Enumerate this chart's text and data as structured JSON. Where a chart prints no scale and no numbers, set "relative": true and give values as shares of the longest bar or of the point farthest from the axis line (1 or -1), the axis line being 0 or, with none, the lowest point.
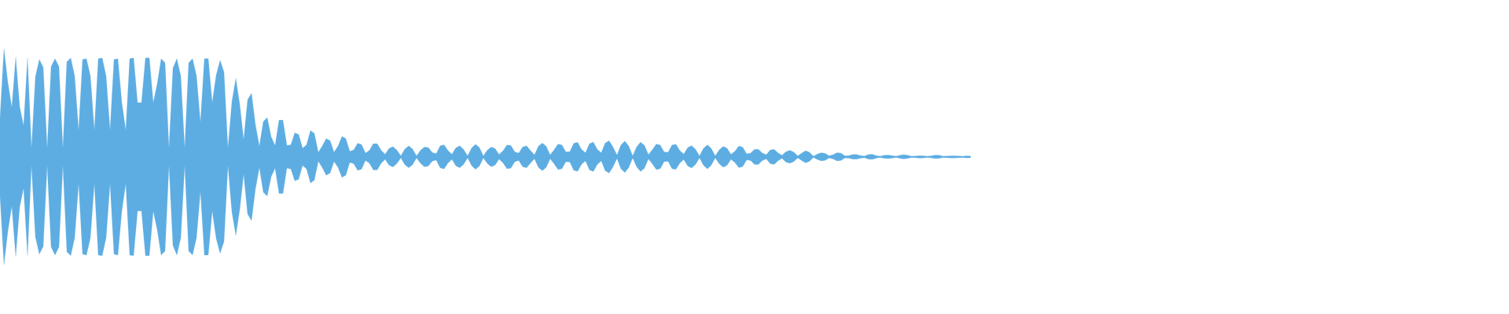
{
  "chart_data": {
    "type": "area",
    "relative": true,
    "categories": [
      null,
      null,
      null,
      null,
      null,
      null,
      null,
      null,
      null,
      null,
      null,
      null,
      null,
      null,
      null,
      null,
      null,
      null,
      null,
      null,
      null,
      null,
      null,
      null,
      null,
      null,
      null,
      null,
      null,
      null,
      null,
      null,
      null,
      null,
      null,
      null,
      null,
      null,
      null,
      null,
      null,
      null,
      null,
      null,
      null,
      null,
      null,
      null,
      null,
      null,
      null,
      null,
      null,
      null,
      null,
      null,
      null,
      null,
      null,
      null,
      null,
      null,
      null,
      null,
      null,
      null,
      null,
      null,
      null,
      null,
      null,
      null,
      null,
      null,
      null,
      null,
      null,
      null,
      null,
      null,
      null,
      null,
      null,
      null,
      null,
      null,
      null,
      null,
      null,
      null,
      null,
      null,
      null,
      null,
      null,
      null,
      null,
      null,
      null,
      null,
      null,
      null,
      null,
      null,
      null,
      null,
      null,
      null,
      null,
      null,
      null,
      null,
      null,
      null,
      null,
      null,
      null,
      null,
      null,
      null,
      null,
      null,
      null,
      null,
      null,
      null,
      null,
      null,
      null,
      null,
      null,
      null,
      null,
      null,
      null,
      null,
      null,
      null,
      null,
      null,
      null,
      null,
      null,
      null,
      null,
      null,
      null,
      null,
      null,
      null,
      null,
      null,
      null,
      null,
      null,
      null,
      null,
      null,
      null,
      null,
      null,
      null,
      null,
      null,
      null,
      null,
      null,
      null,
      null,
      null,
      null,
      null,
      null,
      null,
      null,
      null,
      null,
      null,
      null,
      null,
      null,
      null,
      null,
      null,
      null,
      null,
      null,
      null,
      null,
      null,
      null,
      null,
      null,
      null,
      null,
      null,
      null,
      null,
      null,
      null,
      null,
      null,
      null,
      null,
      null,
      null,
      null,
      null,
      null,
      null,
      null,
      null,
      null,
      null,
      null,
      null,
      null,
      null,
      null,
      null,
      null,
      null,
      null,
      null,
      null,
      null,
      null,
      null,
      null,
      null,
      null,
      null,
      null,
      null,
      null,
      null,
      null,
      null,
      null,
      null,
      null,
      null,
      null,
      null,
      null,
      null,
      null,
      null
    ],
    "ref_lines": [
      {
        "axis": "y",
        "value": 0,
        "color": "#5dade2"
      }
    ],
    "series": [
      {
        "color": "#5dade2",
        "values": [
          0.364,
          1,
          0.69,
          0.458,
          0.924,
          0.466,
          0.29,
          0.916,
          0.08,
          0.742,
          0.902,
          0.83,
          0.08,
          0.836,
          0.91,
          0.836,
          0.08,
          0.88,
          0.916,
          0.75,
          0.248,
          0.902,
          0.91,
          0.75,
          0.248,
          0.91,
          0.916,
          0.75,
          0.248,
          0.902,
          0.91,
          0.502,
          0.248,
          0.91,
          0.916,
          0.502,
          0.502,
          0.916,
          0.916,
          0.502,
          0.676,
          0.91,
          0.872,
          0.08,
          0.822,
          0.91,
          0.75,
          0.08,
          0.872,
          0.91,
          0.75,
          0.32,
          0.91,
          0.91,
          0.502,
          0.756,
          0.894,
          0.786,
          0.08,
          0.51,
          0.728,
          0.49,
          0.16,
          0.53,
          0.59,
          0.298,
          0.1,
          0.328,
          0.364,
          0.186,
          0.106,
          0.34,
          0.34,
          0.106,
          0.112,
          0.222,
          0.208,
          0.08,
          0.112,
          0.244,
          0.216,
          0.042,
          0.1,
          0.17,
          0.15,
          0.044,
          0.098,
          0.19,
          0.17,
          0.052,
          0.064,
          0.126,
          0.114,
          0.034,
          0.06,
          0.122,
          0.122,
          0.06,
          0.024,
          0.078,
          0.094,
          0.062,
          0.01,
          0.072,
          0.102,
          0.072,
          0.01,
          0.06,
          0.092,
          0.086,
          0.04,
          0.03,
          0.102,
          0.112,
          0.058,
          0.024,
          0.084,
          0.102,
          0.068,
          0.01,
          0.082,
          0.116,
          0.086,
          0.01,
          0.062,
          0.092,
          0.076,
          0.022,
          0.056,
          0.11,
          0.106,
          0.046,
          0.034,
          0.092,
          0.102,
          0.058,
          0.018,
          0.098,
          0.128,
          0.098,
          0.018,
          0.066,
          0.118,
          0.11,
          0.046,
          0.048,
          0.126,
          0.134,
          0.068,
          0.038,
          0.122,
          0.136,
          0.07,
          0.038,
          0.128,
          0.15,
          0.092,
          0.016,
          0.11,
          0.146,
          0.1,
          0.01,
          0.092,
          0.136,
          0.106,
          0.02,
          0.066,
          0.118,
          0.11,
          0.046,
          0.042,
          0.11,
          0.116,
          0.058,
          0.026,
          0.086,
          0.104,
          0.07,
          0.01,
          0.078,
          0.112,
          0.078,
          0.01,
          0.064,
          0.096,
          0.08,
          0.024,
          0.052,
          0.1,
          0.09,
          0.028,
          0.034,
          0.07,
          0.07,
          0.034,
          0.02,
          0.064,
          0.07,
          0.036,
          0.014,
          0.048,
          0.06,
          0.044,
          0.01,
          0.034,
          0.056,
          0.042,
          0.006,
          0.026,
          0.038,
          0.032,
          0.01,
          0.02,
          0.038,
          0.034,
          0.01,
          0.012,
          0.022,
          0.022,
          0.012,
          0.008,
          0.022,
          0.024,
          0.012,
          0.006,
          0.014,
          0.016,
          0.012,
          0.006,
          0.014,
          0.02,
          0.014,
          0.006,
          0.008,
          0.012,
          0.01,
          0.006,
          0.01,
          0.016,
          0.014,
          0.006,
          0.008,
          0.01,
          0.01,
          0.008,
          0.006,
          0.01,
          0.008
        ]
      },
      {
        "color": "#5dade2",
        "values": [
          -0.364,
          -1,
          -0.69,
          -0.458,
          -0.924,
          -0.466,
          -0.29,
          -0.916,
          -0.08,
          -0.742,
          -0.902,
          -0.83,
          -0.08,
          -0.836,
          -0.91,
          -0.836,
          -0.08,
          -0.88,
          -0.916,
          -0.75,
          -0.248,
          -0.902,
          -0.91,
          -0.75,
          -0.248,
          -0.91,
          -0.916,
          -0.75,
          -0.248,
          -0.902,
          -0.91,
          -0.502,
          -0.248,
          -0.91,
          -0.916,
          -0.502,
          -0.502,
          -0.916,
          -0.916,
          -0.502,
          -0.676,
          -0.91,
          -0.872,
          -0.08,
          -0.822,
          -0.91,
          -0.75,
          -0.08,
          -0.872,
          -0.91,
          -0.75,
          -0.32,
          -0.91,
          -0.91,
          -0.502,
          -0.756,
          -0.894,
          -0.786,
          -0.08,
          -0.51,
          -0.728,
          -0.49,
          -0.16,
          -0.53,
          -0.59,
          -0.298,
          -0.1,
          -0.328,
          -0.364,
          -0.186,
          -0.106,
          -0.34,
          -0.34,
          -0.106,
          -0.112,
          -0.222,
          -0.208,
          -0.08,
          -0.112,
          -0.244,
          -0.216,
          -0.042,
          -0.1,
          -0.17,
          -0.15,
          -0.044,
          -0.098,
          -0.19,
          -0.17,
          -0.052,
          -0.064,
          -0.126,
          -0.114,
          -0.034,
          -0.06,
          -0.122,
          -0.122,
          -0.06,
          -0.024,
          -0.078,
          -0.094,
          -0.062,
          -0.01,
          -0.072,
          -0.102,
          -0.072,
          -0.01,
          -0.06,
          -0.092,
          -0.086,
          -0.04,
          -0.03,
          -0.102,
          -0.112,
          -0.058,
          -0.024,
          -0.084,
          -0.102,
          -0.068,
          -0.01,
          -0.082,
          -0.116,
          -0.086,
          -0.01,
          -0.062,
          -0.092,
          -0.076,
          -0.022,
          -0.056,
          -0.11,
          -0.106,
          -0.046,
          -0.034,
          -0.092,
          -0.102,
          -0.058,
          -0.018,
          -0.098,
          -0.128,
          -0.098,
          -0.018,
          -0.066,
          -0.118,
          -0.11,
          -0.046,
          -0.048,
          -0.126,
          -0.134,
          -0.068,
          -0.038,
          -0.122,
          -0.136,
          -0.07,
          -0.038,
          -0.128,
          -0.15,
          -0.092,
          -0.016,
          -0.11,
          -0.146,
          -0.1,
          -0.01,
          -0.092,
          -0.136,
          -0.106,
          -0.02,
          -0.066,
          -0.118,
          -0.11,
          -0.046,
          -0.042,
          -0.11,
          -0.116,
          -0.058,
          -0.026,
          -0.086,
          -0.104,
          -0.07,
          -0.01,
          -0.078,
          -0.112,
          -0.078,
          -0.01,
          -0.064,
          -0.096,
          -0.08,
          -0.024,
          -0.052,
          -0.1,
          -0.09,
          -0.028,
          -0.034,
          -0.07,
          -0.07,
          -0.034,
          -0.02,
          -0.064,
          -0.07,
          -0.036,
          -0.014,
          -0.048,
          -0.06,
          -0.044,
          -0.01,
          -0.034,
          -0.056,
          -0.042,
          -0.006,
          -0.026,
          -0.038,
          -0.032,
          -0.01,
          -0.02,
          -0.038,
          -0.034,
          -0.01,
          -0.012,
          -0.022,
          -0.022,
          -0.012,
          -0.008,
          -0.022,
          -0.024,
          -0.012,
          -0.006,
          -0.014,
          -0.016,
          -0.012,
          -0.006,
          -0.014,
          -0.02,
          -0.014,
          -0.006,
          -0.008,
          -0.012,
          -0.01,
          -0.006,
          -0.01,
          -0.016,
          -0.014,
          -0.006,
          -0.008,
          -0.01,
          -0.01,
          -0.008,
          -0.006,
          -0.01,
          -0.008
        ]
      }
    ]
  }
}
